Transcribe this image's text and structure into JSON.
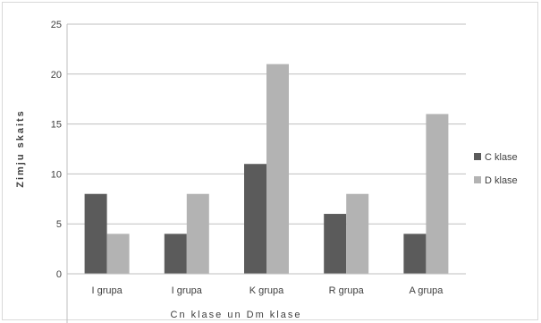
{
  "chart_data": {
    "type": "bar",
    "title": "",
    "xlabel": "Cn klase un Dm klase",
    "ylabel": "Zimju skaits",
    "categories": [
      "I grupa",
      "I grupa",
      "K grupa",
      "R grupa",
      "A grupa"
    ],
    "series": [
      {
        "name": "C klase",
        "values": [
          8,
          4,
          11,
          6,
          4
        ],
        "color": "#5b5b5b"
      },
      {
        "name": "D klase",
        "values": [
          4,
          8,
          21,
          8,
          16
        ],
        "color": "#b3b3b3"
      }
    ],
    "ylim": [
      0,
      25
    ],
    "yticks": [
      0,
      5,
      10,
      15,
      20,
      25
    ],
    "grid": true,
    "legend_position": "right"
  }
}
